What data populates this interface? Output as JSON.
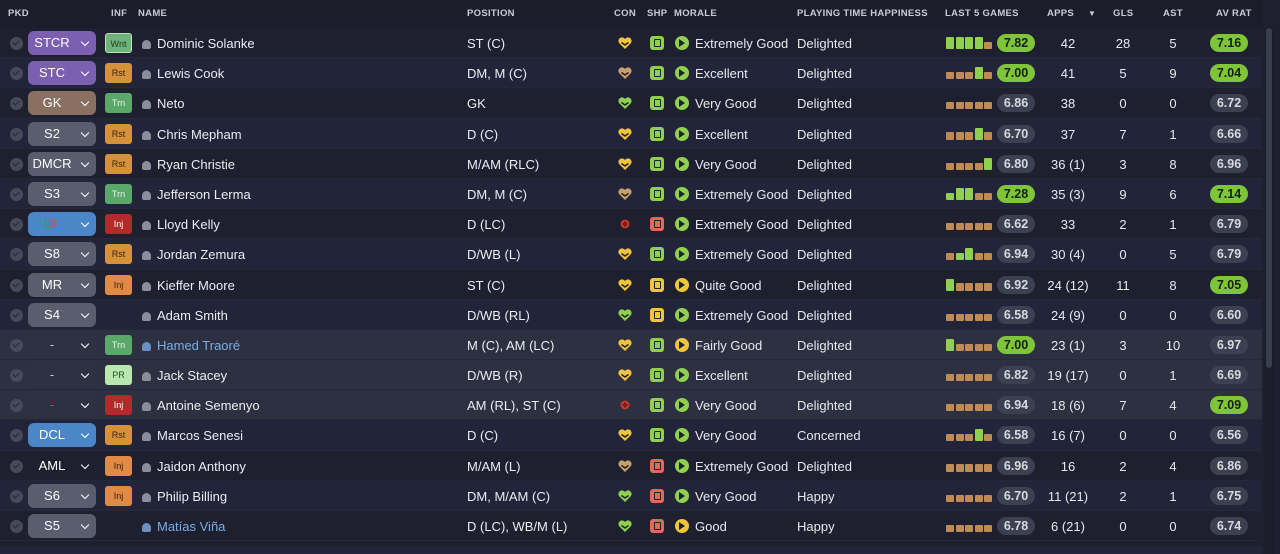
{
  "columns": {
    "pkd": "PKD",
    "inf": "INF",
    "name": "NAME",
    "position": "POSITION",
    "con": "CON",
    "shp": "SHP",
    "morale": "MORALE",
    "pth": "PLAYING TIME HAPPINESS",
    "last5": "LAST 5 GAMES",
    "apps": "APPS",
    "gls": "GLS",
    "ast": "AST",
    "avrat": "AV RAT"
  },
  "sort_indicator": "▼",
  "colors": {
    "pos_purple": "#7b5fb0",
    "pos_brown": "#8a7060",
    "pos_grey": "#5a5d6e",
    "pos_blue": "#4a86c8",
    "inf_green": "#5aa86a",
    "inf_orange": "#d6923a",
    "inf_red": "#b32a2a",
    "inf_light": "#b9e7b0",
    "rating_green": "#7fc53a",
    "good_green": "#8fd14f",
    "warn_red": "#e06a5a",
    "yellow": "#f0c43c"
  },
  "rows": [
    {
      "pos": "STCR",
      "pos_style": "purple",
      "inf": "Wnt",
      "inf_style": "wnt",
      "name": "Dominic Solanke",
      "position": "ST (C)",
      "con": "heart-yellow",
      "shp": "up-green",
      "morale_icon": "good",
      "morale": "Extremely Good",
      "pth": "Delighted",
      "last5": [
        [
          1,
          "g"
        ],
        [
          1,
          "g"
        ],
        [
          1,
          "g"
        ],
        [
          1,
          "g"
        ],
        [
          0.6,
          "o"
        ]
      ],
      "rating": "7.82",
      "rating_hi": true,
      "apps": "42",
      "gls": "28",
      "ast": "5",
      "avrat": "7.16",
      "avrat_hi": true
    },
    {
      "pos": "STC",
      "pos_style": "purple",
      "inf": "Rst",
      "inf_style": "rst",
      "name": "Lewis Cook",
      "position": "DM, M (C)",
      "con": "heart-brown",
      "shp": "up-green",
      "morale_icon": "good",
      "morale": "Excellent",
      "pth": "Delighted",
      "last5": [
        [
          0.6,
          "o"
        ],
        [
          0.6,
          "o"
        ],
        [
          0.6,
          "o"
        ],
        [
          1,
          "g"
        ],
        [
          0.6,
          "o"
        ]
      ],
      "rating": "7.00",
      "rating_hi": true,
      "apps": "41",
      "gls": "5",
      "ast": "9",
      "avrat": "7.04",
      "avrat_hi": true
    },
    {
      "pos": "GK",
      "pos_style": "brown",
      "inf": "Trn",
      "inf_style": "trn",
      "name": "Neto",
      "position": "GK",
      "con": "heart-green",
      "shp": "up-green",
      "morale_icon": "good",
      "morale": "Very Good",
      "pth": "Delighted",
      "last5": [
        [
          0.6,
          "o"
        ],
        [
          0.6,
          "o"
        ],
        [
          0.6,
          "o"
        ],
        [
          0.6,
          "o"
        ],
        [
          0.6,
          "o"
        ]
      ],
      "rating": "6.86",
      "rating_hi": false,
      "apps": "38",
      "gls": "0",
      "ast": "0",
      "avrat": "6.72",
      "avrat_hi": false
    },
    {
      "pos": "S2",
      "pos_style": "grey",
      "inf": "Rst",
      "inf_style": "rst",
      "name": "Chris Mepham",
      "position": "D (C)",
      "con": "heart-yellow",
      "shp": "up-green",
      "morale_icon": "good",
      "morale": "Excellent",
      "pth": "Delighted",
      "last5": [
        [
          0.6,
          "o"
        ],
        [
          0.6,
          "o"
        ],
        [
          0.6,
          "o"
        ],
        [
          1,
          "g"
        ],
        [
          0.6,
          "o"
        ]
      ],
      "rating": "6.70",
      "rating_hi": false,
      "apps": "37",
      "gls": "7",
      "ast": "1",
      "avrat": "6.66",
      "avrat_hi": false
    },
    {
      "pos": "DMCR",
      "pos_style": "grey",
      "inf": "Rst",
      "inf_style": "rst",
      "name": "Ryan Christie",
      "position": "M/AM (RLC)",
      "con": "heart-yellow",
      "shp": "up-green",
      "morale_icon": "good",
      "morale": "Very Good",
      "pth": "Delighted",
      "last5": [
        [
          0.6,
          "o"
        ],
        [
          0.6,
          "o"
        ],
        [
          0.6,
          "o"
        ],
        [
          0.6,
          "o"
        ],
        [
          1,
          "g"
        ]
      ],
      "rating": "6.80",
      "rating_hi": false,
      "apps": "36 (1)",
      "gls": "3",
      "ast": "8",
      "avrat": "6.96",
      "avrat_hi": false
    },
    {
      "pos": "S3",
      "pos_style": "grey",
      "inf": "Trn",
      "inf_style": "trn",
      "name": "Jefferson Lerma",
      "position": "DM, M (C)",
      "con": "heart-brown",
      "shp": "up-green",
      "morale_icon": "good",
      "morale": "Extremely Good",
      "pth": "Delighted",
      "last5": [
        [
          0.6,
          "g"
        ],
        [
          1,
          "g"
        ],
        [
          1,
          "g"
        ],
        [
          0.6,
          "o"
        ],
        [
          0.6,
          "o"
        ]
      ],
      "rating": "7.28",
      "rating_hi": true,
      "apps": "35 (3)",
      "gls": "9",
      "ast": "6",
      "avrat": "7.14",
      "avrat_hi": true
    },
    {
      "pos": "DL",
      "pos_style": "blue-red",
      "inf": "Inj",
      "inf_style": "inj",
      "name": "Lloyd Kelly",
      "position": "D (LC)",
      "con": "injury-dot",
      "shp": "down-red",
      "morale_icon": "good",
      "morale": "Extremely Good",
      "pth": "Delighted",
      "last5": [
        [
          0.6,
          "o"
        ],
        [
          0.6,
          "o"
        ],
        [
          0.6,
          "o"
        ],
        [
          0.6,
          "o"
        ],
        [
          0.6,
          "o"
        ]
      ],
      "rating": "6.62",
      "rating_hi": false,
      "apps": "33",
      "gls": "2",
      "ast": "1",
      "avrat": "6.79",
      "avrat_hi": false
    },
    {
      "pos": "S8",
      "pos_style": "grey",
      "inf": "Rst",
      "inf_style": "rst",
      "name": "Jordan Zemura",
      "position": "D/WB (L)",
      "con": "heart-yellow",
      "shp": "up-green",
      "morale_icon": "good",
      "morale": "Extremely Good",
      "pth": "Delighted",
      "last5": [
        [
          0.6,
          "o"
        ],
        [
          0.6,
          "g"
        ],
        [
          1,
          "g"
        ],
        [
          0.6,
          "o"
        ],
        [
          0.6,
          "o"
        ]
      ],
      "rating": "6.94",
      "rating_hi": false,
      "apps": "30 (4)",
      "gls": "0",
      "ast": "5",
      "avrat": "6.79",
      "avrat_hi": false
    },
    {
      "pos": "MR",
      "pos_style": "grey",
      "inf": "Inj",
      "inf_style": "inj-o",
      "name": "Kieffer Moore",
      "position": "ST (C)",
      "con": "heart-yellow",
      "shp": "flat-yellow",
      "morale_icon": "ok",
      "morale": "Quite Good",
      "pth": "Delighted",
      "last5": [
        [
          1,
          "g"
        ],
        [
          0.6,
          "o"
        ],
        [
          0.6,
          "o"
        ],
        [
          0.6,
          "o"
        ],
        [
          0.6,
          "o"
        ]
      ],
      "rating": "6.92",
      "rating_hi": false,
      "apps": "24 (12)",
      "gls": "11",
      "ast": "8",
      "avrat": "7.05",
      "avrat_hi": true
    },
    {
      "pos": "S4",
      "pos_style": "grey",
      "inf": "",
      "inf_style": "none",
      "name": "Adam Smith",
      "position": "D/WB (RL)",
      "con": "heart-green",
      "shp": "flat-yellow",
      "morale_icon": "good",
      "morale": "Extremely Good",
      "pth": "Delighted",
      "last5": [
        [
          0.6,
          "o"
        ],
        [
          0.6,
          "o"
        ],
        [
          0.6,
          "o"
        ],
        [
          0.6,
          "o"
        ],
        [
          0.6,
          "o"
        ]
      ],
      "rating": "6.58",
      "rating_hi": false,
      "apps": "24 (9)",
      "gls": "0",
      "ast": "0",
      "avrat": "6.60",
      "avrat_hi": false
    },
    {
      "pos": "-",
      "pos_style": "dash",
      "inf": "Trn",
      "inf_style": "trn",
      "name": "Hamed Traoré",
      "name_link": true,
      "position": "M (C), AM (LC)",
      "con": "heart-yellow",
      "shp": "up-green",
      "morale_icon": "ok",
      "morale": "Fairly Good",
      "pth": "Delighted",
      "last5": [
        [
          1,
          "g"
        ],
        [
          0.6,
          "o"
        ],
        [
          0.6,
          "o"
        ],
        [
          0.6,
          "o"
        ],
        [
          0.6,
          "o"
        ]
      ],
      "rating": "7.00",
      "rating_hi": true,
      "apps": "23 (1)",
      "gls": "3",
      "ast": "10",
      "avrat": "6.97",
      "avrat_hi": false
    },
    {
      "pos": "-",
      "pos_style": "dash",
      "inf": "PR",
      "inf_style": "pr",
      "name": "Jack Stacey",
      "position": "D/WB (R)",
      "con": "heart-yellow",
      "shp": "up-green",
      "morale_icon": "good",
      "morale": "Excellent",
      "pth": "Delighted",
      "last5": [
        [
          0.6,
          "o"
        ],
        [
          0.6,
          "o"
        ],
        [
          0.6,
          "o"
        ],
        [
          0.6,
          "o"
        ],
        [
          0.6,
          "o"
        ]
      ],
      "rating": "6.82",
      "rating_hi": false,
      "apps": "19 (17)",
      "gls": "0",
      "ast": "1",
      "avrat": "6.69",
      "avrat_hi": false
    },
    {
      "pos": "-",
      "pos_style": "dash-red",
      "inf": "Inj",
      "inf_style": "inj",
      "name": "Antoine Semenyo",
      "position": "AM (RL), ST (C)",
      "con": "injury-dot",
      "shp": "flat-green",
      "morale_icon": "good",
      "morale": "Very Good",
      "pth": "Delighted",
      "last5": [
        [
          0.6,
          "o"
        ],
        [
          0.6,
          "o"
        ],
        [
          0.6,
          "o"
        ],
        [
          0.6,
          "o"
        ],
        [
          0.6,
          "o"
        ]
      ],
      "rating": "6.94",
      "rating_hi": false,
      "apps": "18 (6)",
      "gls": "7",
      "ast": "4",
      "avrat": "7.09",
      "avrat_hi": true
    },
    {
      "pos": "DCL",
      "pos_style": "blue",
      "inf": "Rst",
      "inf_style": "rst",
      "name": "Marcos Senesi",
      "position": "D (C)",
      "con": "heart-yellow",
      "shp": "up-green",
      "morale_icon": "good",
      "morale": "Very Good",
      "pth": "Concerned",
      "last5": [
        [
          0.6,
          "o"
        ],
        [
          0.6,
          "o"
        ],
        [
          0.6,
          "o"
        ],
        [
          1,
          "g"
        ],
        [
          0.6,
          "o"
        ]
      ],
      "rating": "6.58",
      "rating_hi": false,
      "apps": "16 (7)",
      "gls": "0",
      "ast": "0",
      "avrat": "6.56",
      "avrat_hi": false
    },
    {
      "pos": "AML",
      "pos_style": "none",
      "inf": "Inj",
      "inf_style": "inj-o",
      "name": "Jaidon Anthony",
      "position": "M/AM (L)",
      "con": "heart-brown",
      "shp": "down-red",
      "morale_icon": "good",
      "morale": "Extremely Good",
      "pth": "Delighted",
      "last5": [
        [
          0.6,
          "o"
        ],
        [
          0.6,
          "o"
        ],
        [
          0.6,
          "o"
        ],
        [
          0.6,
          "o"
        ],
        [
          0.6,
          "o"
        ]
      ],
      "rating": "6.96",
      "rating_hi": false,
      "apps": "16",
      "gls": "2",
      "ast": "4",
      "avrat": "6.86",
      "avrat_hi": false
    },
    {
      "pos": "S6",
      "pos_style": "grey",
      "inf": "Inj",
      "inf_style": "inj-o",
      "name": "Philip Billing",
      "position": "DM, M/AM (C)",
      "con": "heart-green",
      "shp": "down-red",
      "morale_icon": "good",
      "morale": "Very Good",
      "pth": "Happy",
      "last5": [
        [
          0.6,
          "o"
        ],
        [
          0.6,
          "o"
        ],
        [
          0.6,
          "o"
        ],
        [
          0.6,
          "o"
        ],
        [
          0.6,
          "o"
        ]
      ],
      "rating": "6.70",
      "rating_hi": false,
      "apps": "11 (21)",
      "gls": "2",
      "ast": "1",
      "avrat": "6.75",
      "avrat_hi": false
    },
    {
      "pos": "S5",
      "pos_style": "grey",
      "inf": "",
      "inf_style": "none",
      "name": "Matías Viña",
      "name_link": true,
      "position": "D (LC), WB/M (L)",
      "con": "heart-green",
      "shp": "down-red",
      "morale_icon": "ok-yellow",
      "morale": "Good",
      "pth": "Happy",
      "last5": [
        [
          0.6,
          "o"
        ],
        [
          0.6,
          "o"
        ],
        [
          0.6,
          "o"
        ],
        [
          0.6,
          "o"
        ],
        [
          0.6,
          "o"
        ]
      ],
      "rating": "6.78",
      "rating_hi": false,
      "apps": "6 (21)",
      "gls": "0",
      "ast": "0",
      "avrat": "6.74",
      "avrat_hi": false
    }
  ]
}
